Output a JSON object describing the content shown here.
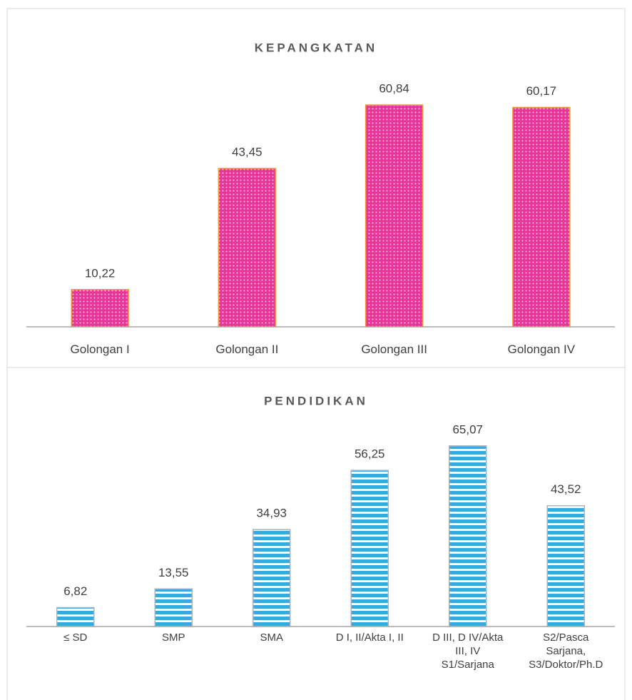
{
  "chart_data": [
    {
      "type": "bar",
      "title": "KEPANGKATAN",
      "categories": [
        "Golongan I",
        "Golongan II",
        "Golongan III",
        "Golongan IV"
      ],
      "values": [
        10.22,
        43.45,
        60.84,
        60.17
      ],
      "value_labels": [
        "10,22",
        "43,45",
        "60,84",
        "60,17"
      ],
      "color": "#e8359a",
      "edgecolor": "#f29a3a",
      "pattern": "dots"
    },
    {
      "type": "bar",
      "title": "PENDIDIKAN",
      "categories": [
        "≤ SD",
        "SMP",
        "SMA",
        "D I, II/Akta I, II",
        "D III, D IV/Akta\nIII, IV\nS1/Sarjana",
        "S2/Pasca\nSarjana,\nS3/Doktor/Ph.D"
      ],
      "values": [
        6.82,
        13.55,
        34.93,
        56.25,
        65.07,
        43.52
      ],
      "value_labels": [
        "6,82",
        "13,55",
        "34,93",
        "56,25",
        "65,07",
        "43,52"
      ],
      "color": "#3aa8df",
      "edgecolor": "#a9b4bd",
      "pattern": "stripes"
    }
  ]
}
